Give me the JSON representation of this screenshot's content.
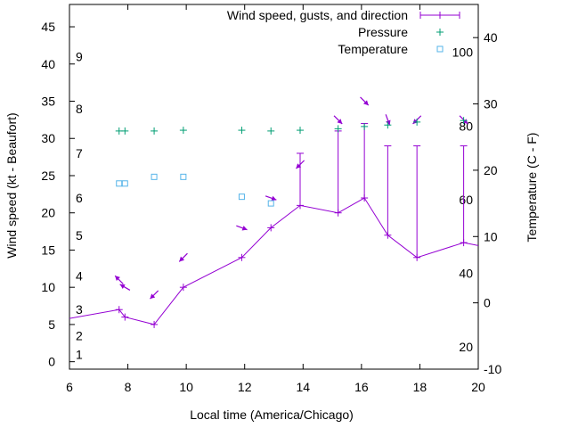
{
  "chart_data": {
    "type": "line",
    "xlabel": "Local time (America/Chicago)",
    "ylabel_left": "Wind speed (kt - Beaufort)",
    "ylabel_right": "Temperature (C - F)",
    "xlim": [
      6,
      20
    ],
    "ylim_left": [
      -1,
      48
    ],
    "ylim_right": [
      -10,
      45
    ],
    "x_ticks": [
      "6",
      "8",
      "10",
      "12",
      "14",
      "16",
      "18",
      "20"
    ],
    "y_left_ticks": [
      "0",
      "5",
      "10",
      "15",
      "20",
      "25",
      "30",
      "35",
      "40",
      "45"
    ],
    "y_right_ticks": [
      "-10",
      "0",
      "10",
      "20",
      "30",
      "40"
    ],
    "beaufort_labels": [
      "1",
      "2",
      "3",
      "4",
      "5",
      "6",
      "7",
      "8",
      "9"
    ],
    "fahrenheit_labels": [
      "20",
      "40",
      "60",
      "80",
      "100"
    ],
    "legend": {
      "position": "top-right",
      "entries": [
        {
          "label": "Wind speed, gusts, and direction",
          "color": "#9400d3"
        },
        {
          "label": "Pressure",
          "color": "#009e73"
        },
        {
          "label": "Temperature",
          "color": "#56b4e9"
        }
      ]
    },
    "series": [
      {
        "name": "Wind speed, gusts, and direction",
        "color": "#9400d3",
        "points": [
          {
            "x": 5.4,
            "y": 5.4
          },
          {
            "x": 7.7,
            "y": 7.0
          },
          {
            "x": 7.9,
            "y": 6.0
          },
          {
            "x": 8.9,
            "y": 5.0
          },
          {
            "x": 9.9,
            "y": 10.0
          },
          {
            "x": 11.9,
            "y": 14.0
          },
          {
            "x": 12.9,
            "y": 18.0
          },
          {
            "x": 13.9,
            "y": 21.0,
            "gust": 28.0
          },
          {
            "x": 15.2,
            "y": 20.0,
            "gust": 31.0
          },
          {
            "x": 16.1,
            "y": 22.0,
            "gust": 32.0
          },
          {
            "x": 16.9,
            "y": 17.0,
            "gust": 29.0
          },
          {
            "x": 17.9,
            "y": 14.0,
            "gust": 29.0
          },
          {
            "x": 19.5,
            "y": 16.0,
            "gust": 29.0
          },
          {
            "x": 20.0,
            "y": 15.6
          }
        ],
        "direction_arrows": [
          {
            "x": 7.7,
            "y": 11.0,
            "dir_deg": 315
          },
          {
            "x": 7.9,
            "y": 10.0,
            "dir_deg": 300
          },
          {
            "x": 8.9,
            "y": 9.0,
            "dir_deg": 225
          },
          {
            "x": 9.9,
            "y": 14.0,
            "dir_deg": 225
          },
          {
            "x": 11.9,
            "y": 18.0,
            "dir_deg": 110
          },
          {
            "x": 12.9,
            "y": 22.0,
            "dir_deg": 110
          },
          {
            "x": 13.9,
            "y": 26.5,
            "dir_deg": 225
          },
          {
            "x": 15.2,
            "y": 32.5,
            "dir_deg": 135
          },
          {
            "x": 16.1,
            "y": 35.0,
            "dir_deg": 135
          },
          {
            "x": 16.9,
            "y": 32.5,
            "dir_deg": 160
          },
          {
            "x": 17.9,
            "y": 32.5,
            "dir_deg": 225
          },
          {
            "x": 19.5,
            "y": 32.5,
            "dir_deg": 135
          }
        ]
      },
      {
        "name": "Pressure",
        "color": "#009e73",
        "points": [
          {
            "x": 7.7,
            "y": 31.0
          },
          {
            "x": 7.9,
            "y": 31.0
          },
          {
            "x": 8.9,
            "y": 31.0
          },
          {
            "x": 9.9,
            "y": 31.1
          },
          {
            "x": 11.9,
            "y": 31.1
          },
          {
            "x": 12.9,
            "y": 31.0
          },
          {
            "x": 13.9,
            "y": 31.1
          },
          {
            "x": 15.2,
            "y": 31.3
          },
          {
            "x": 16.1,
            "y": 31.6
          },
          {
            "x": 16.9,
            "y": 31.8
          },
          {
            "x": 17.9,
            "y": 32.2
          },
          {
            "x": 19.5,
            "y": 32.4
          }
        ]
      },
      {
        "name": "Temperature",
        "color": "#56b4e9",
        "axis": "right",
        "points": [
          {
            "x": 7.7,
            "y": 18.0
          },
          {
            "x": 7.9,
            "y": 18.0
          },
          {
            "x": 8.9,
            "y": 19.0
          },
          {
            "x": 9.9,
            "y": 19.0
          },
          {
            "x": 11.9,
            "y": 16.0
          },
          {
            "x": 12.9,
            "y": 15.0
          }
        ]
      }
    ]
  }
}
